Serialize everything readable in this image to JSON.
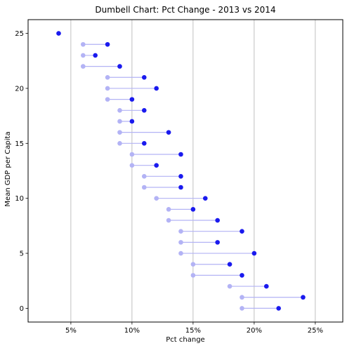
{
  "chart_data": {
    "type": "scatter",
    "subtype": "dumbbell",
    "title": "Dumbell Chart: Pct Change - 2013 vs 2014",
    "xlabel": "Pct change",
    "ylabel": "Mean GDP per Capita",
    "xlim": [
      0.015,
      0.2725
    ],
    "ylim": [
      -1.25,
      26.25
    ],
    "xticks": [
      {
        "value": 0.05,
        "label": "5%"
      },
      {
        "value": 0.1,
        "label": "10%"
      },
      {
        "value": 0.15,
        "label": "15%"
      },
      {
        "value": 0.2,
        "label": "20%"
      },
      {
        "value": 0.25,
        "label": "25%"
      }
    ],
    "yticks": [
      {
        "value": 0,
        "label": "0"
      },
      {
        "value": 5,
        "label": "5"
      },
      {
        "value": 10,
        "label": "10"
      },
      {
        "value": 15,
        "label": "15"
      },
      {
        "value": 20,
        "label": "20"
      },
      {
        "value": 25,
        "label": "25"
      }
    ],
    "grid": {
      "x": true,
      "y": false
    },
    "colors": {
      "point_2013": "#b3b3f5",
      "point_2014": "#1a1aee",
      "connector": "#b3b3f5",
      "grid": "#b0b0b0"
    },
    "rows": [
      {
        "y": 0,
        "pct_2013": 0.19,
        "pct_2014": 0.22
      },
      {
        "y": 1,
        "pct_2013": 0.19,
        "pct_2014": 0.24
      },
      {
        "y": 2,
        "pct_2013": 0.18,
        "pct_2014": 0.21
      },
      {
        "y": 3,
        "pct_2013": 0.15,
        "pct_2014": 0.19
      },
      {
        "y": 4,
        "pct_2013": 0.15,
        "pct_2014": 0.18
      },
      {
        "y": 5,
        "pct_2013": 0.14,
        "pct_2014": 0.2
      },
      {
        "y": 6,
        "pct_2013": 0.14,
        "pct_2014": 0.17
      },
      {
        "y": 7,
        "pct_2013": 0.14,
        "pct_2014": 0.19
      },
      {
        "y": 8,
        "pct_2013": 0.13,
        "pct_2014": 0.17
      },
      {
        "y": 9,
        "pct_2013": 0.13,
        "pct_2014": 0.15
      },
      {
        "y": 10,
        "pct_2013": 0.12,
        "pct_2014": 0.16
      },
      {
        "y": 11,
        "pct_2013": 0.11,
        "pct_2014": 0.14
      },
      {
        "y": 12,
        "pct_2013": 0.11,
        "pct_2014": 0.14
      },
      {
        "y": 13,
        "pct_2013": 0.1,
        "pct_2014": 0.12
      },
      {
        "y": 14,
        "pct_2013": 0.1,
        "pct_2014": 0.14
      },
      {
        "y": 15,
        "pct_2013": 0.09,
        "pct_2014": 0.11
      },
      {
        "y": 16,
        "pct_2013": 0.09,
        "pct_2014": 0.13
      },
      {
        "y": 17,
        "pct_2013": 0.09,
        "pct_2014": 0.1
      },
      {
        "y": 18,
        "pct_2013": 0.09,
        "pct_2014": 0.11
      },
      {
        "y": 19,
        "pct_2013": 0.08,
        "pct_2014": 0.1
      },
      {
        "y": 20,
        "pct_2013": 0.08,
        "pct_2014": 0.12
      },
      {
        "y": 21,
        "pct_2013": 0.08,
        "pct_2014": 0.11
      },
      {
        "y": 22,
        "pct_2013": 0.06,
        "pct_2014": 0.09
      },
      {
        "y": 23,
        "pct_2013": 0.06,
        "pct_2014": 0.07
      },
      {
        "y": 24,
        "pct_2013": 0.06,
        "pct_2014": 0.08
      },
      {
        "y": 25,
        "pct_2013": null,
        "pct_2014": 0.04
      }
    ]
  }
}
